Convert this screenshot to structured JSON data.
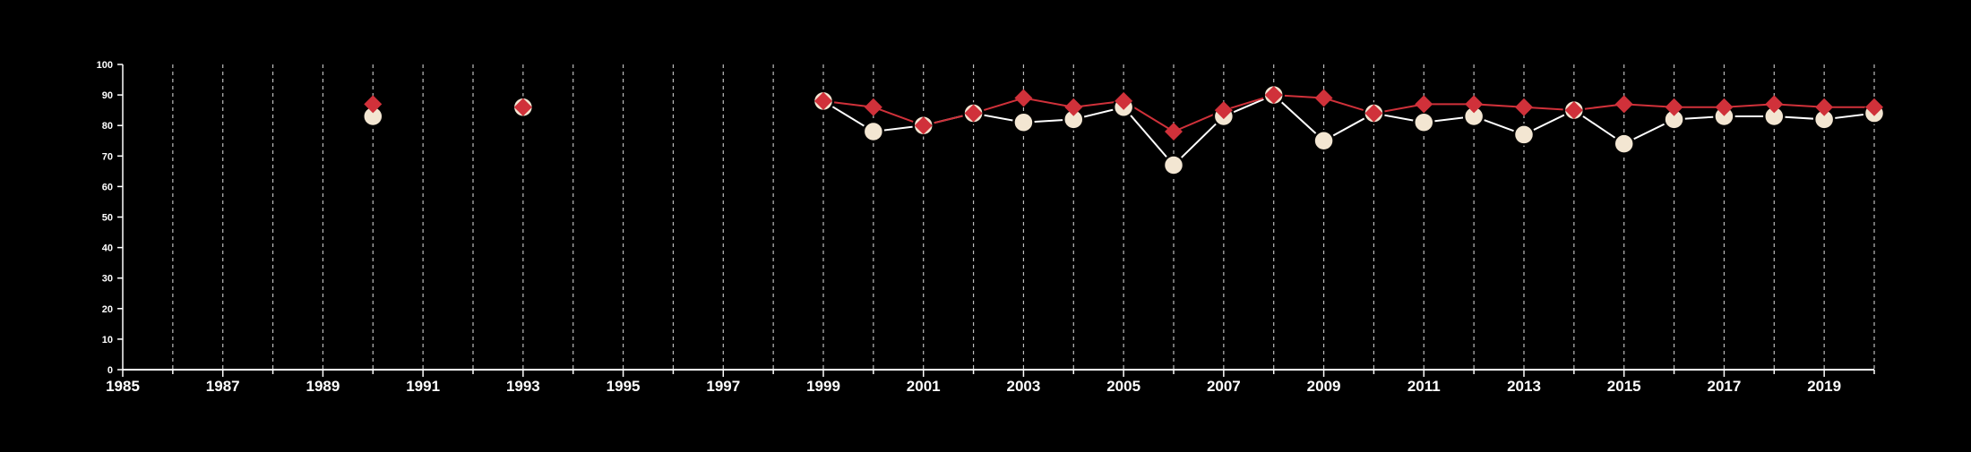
{
  "chart_data": {
    "type": "line",
    "title": "",
    "xlabel": "",
    "ylabel": "",
    "xlim": [
      1985,
      2020
    ],
    "ylim": [
      0,
      100
    ],
    "x_ticks": [
      1985,
      1987,
      1989,
      1991,
      1993,
      1995,
      1997,
      1999,
      2001,
      2003,
      2005,
      2007,
      2009,
      2011,
      2013,
      2015,
      2017,
      2019
    ],
    "y_ticks": [
      0,
      10,
      20,
      30,
      40,
      50,
      60,
      70,
      80,
      90,
      100
    ],
    "grid": "vertical dashed lines at every year",
    "legend": "none",
    "x": [
      1985,
      1986,
      1987,
      1988,
      1989,
      1990,
      1991,
      1992,
      1993,
      1994,
      1995,
      1996,
      1997,
      1998,
      1999,
      2000,
      2001,
      2002,
      2003,
      2004,
      2005,
      2006,
      2007,
      2008,
      2009,
      2010,
      2011,
      2012,
      2013,
      2014,
      2015,
      2016,
      2017,
      2018,
      2019,
      2020
    ],
    "series": [
      {
        "marker": "circle",
        "color": "#f3e6d2",
        "values": [
          null,
          null,
          null,
          null,
          null,
          83,
          null,
          null,
          86,
          null,
          null,
          null,
          null,
          null,
          88,
          78,
          80,
          84,
          81,
          82,
          86,
          67,
          83,
          90,
          75,
          84,
          81,
          83,
          77,
          85,
          74,
          82,
          83,
          83,
          82,
          84
        ]
      },
      {
        "marker": "diamond",
        "color": "#d0313a",
        "values": [
          null,
          null,
          null,
          null,
          null,
          87,
          null,
          null,
          86,
          null,
          null,
          null,
          null,
          null,
          88,
          86,
          80,
          84,
          89,
          86,
          88,
          78,
          85,
          90,
          89,
          84,
          87,
          87,
          86,
          85,
          87,
          86,
          86,
          87,
          86,
          86
        ]
      }
    ]
  }
}
